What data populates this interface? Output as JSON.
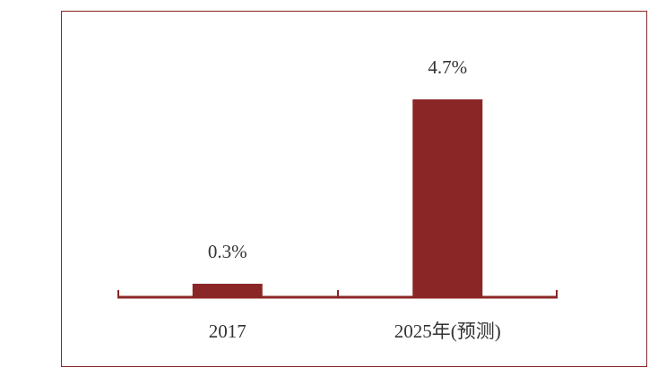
{
  "chart_data": {
    "type": "bar",
    "categories": [
      "2017",
      "2025年(预测)"
    ],
    "values": [
      0.3,
      4.7
    ],
    "value_labels": [
      "0.3%",
      "4.7%"
    ],
    "color": "#8b2626"
  }
}
